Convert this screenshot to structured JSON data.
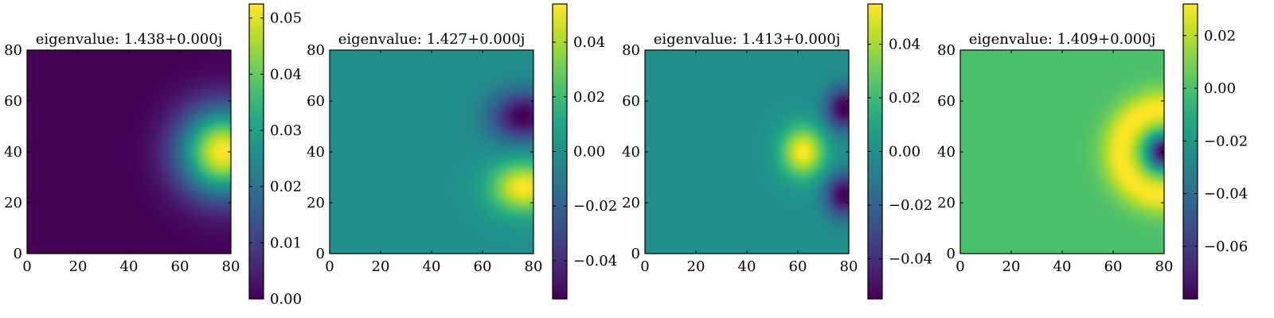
{
  "chart_data": [
    {
      "type": "heatmap",
      "title": "eigenvalue: 1.438+0.000j",
      "xlim": [
        0,
        80
      ],
      "ylim": [
        0,
        80
      ],
      "xticks": [
        "0",
        "20",
        "40",
        "60",
        "80"
      ],
      "yticks": [
        "0",
        "20",
        "40",
        "60",
        "80"
      ],
      "colorbar": {
        "range": [
          0.0,
          0.0525
        ],
        "ticks": [
          0.0,
          0.01,
          0.02,
          0.03,
          0.04,
          0.05
        ],
        "tick_labels": [
          "0.00",
          "0.01",
          "0.02",
          "0.03",
          "0.04",
          "0.05"
        ]
      },
      "lobes": [
        {
          "x": 77,
          "y": 40,
          "sx": 12,
          "sy": 12,
          "amp": 0.0525
        }
      ],
      "background": 0.0
    },
    {
      "type": "heatmap",
      "title": "eigenvalue: 1.427+0.000j",
      "xlim": [
        0,
        80
      ],
      "ylim": [
        0,
        80
      ],
      "xticks": [
        "0",
        "20",
        "40",
        "60",
        "80"
      ],
      "yticks": [
        "0",
        "20",
        "40",
        "60",
        "80"
      ],
      "colorbar": {
        "range": [
          -0.054,
          0.054
        ],
        "ticks": [
          -0.04,
          -0.02,
          0.0,
          0.02,
          0.04
        ],
        "tick_labels": [
          "−0.04",
          "−0.02",
          "0.00",
          "0.02",
          "0.04"
        ]
      },
      "lobes": [
        {
          "x": 76,
          "y": 54,
          "sx": 9,
          "sy": 7,
          "amp": -0.054
        },
        {
          "x": 76,
          "y": 26,
          "sx": 9,
          "sy": 7,
          "amp": 0.054
        }
      ],
      "background": 0.0
    },
    {
      "type": "heatmap",
      "title": "eigenvalue: 1.413+0.000j",
      "xlim": [
        0,
        80
      ],
      "ylim": [
        0,
        80
      ],
      "xticks": [
        "0",
        "20",
        "40",
        "60",
        "80"
      ],
      "yticks": [
        "0",
        "20",
        "40",
        "60",
        "80"
      ],
      "colorbar": {
        "range": [
          -0.055,
          0.055
        ],
        "ticks": [
          -0.04,
          -0.02,
          0.0,
          0.02,
          0.04
        ],
        "tick_labels": [
          "−0.04",
          "−0.02",
          "0.00",
          "0.02",
          "0.04"
        ]
      },
      "lobes": [
        {
          "x": 62,
          "y": 40,
          "sx": 6,
          "sy": 7,
          "amp": 0.055
        },
        {
          "x": 78,
          "y": 57,
          "sx": 5,
          "sy": 6,
          "amp": -0.055
        },
        {
          "x": 78,
          "y": 23,
          "sx": 5,
          "sy": 6,
          "amp": -0.055
        }
      ],
      "background": 0.0
    },
    {
      "type": "heatmap",
      "title": "eigenvalue: 1.409+0.000j",
      "xlim": [
        0,
        80
      ],
      "ylim": [
        0,
        80
      ],
      "xticks": [
        "0",
        "20",
        "40",
        "60",
        "80"
      ],
      "yticks": [
        "0",
        "20",
        "40",
        "60",
        "80"
      ],
      "colorbar": {
        "range": [
          -0.08,
          0.032
        ],
        "ticks": [
          -0.06,
          -0.04,
          -0.02,
          0.0,
          0.02
        ],
        "tick_labels": [
          "−0.06",
          "−0.04",
          "−0.02",
          "0.00",
          "0.02"
        ]
      },
      "ring": {
        "x": 80,
        "y": 40,
        "r": 17,
        "w": 5.5,
        "amp": 0.032
      },
      "lobes": [
        {
          "x": 80,
          "y": 40,
          "sx": 4.5,
          "sy": 4.5,
          "amp": -0.08
        }
      ],
      "background": 0.0
    }
  ]
}
